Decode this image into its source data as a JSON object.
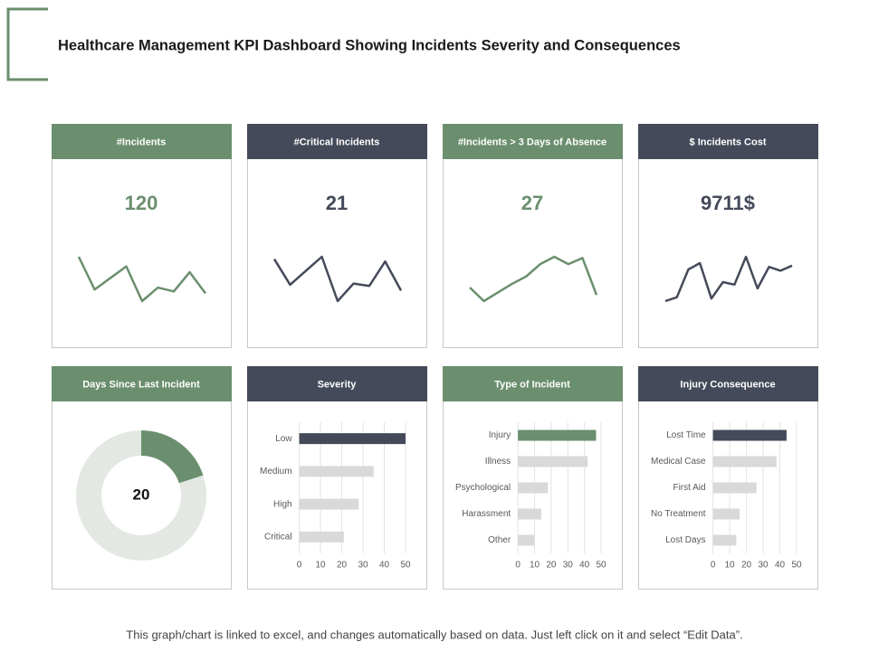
{
  "title": "Healthcare Management KPI Dashboard Showing Incidents Severity and Consequences",
  "footer": "This graph/chart is linked to excel, and changes automatically based on data. Just left click on it and select “Edit Data”.",
  "chart_data": [
    {
      "type": "line",
      "title": "#Incidents",
      "kpi": 120,
      "color": "#6b8f6e",
      "values": [
        33,
        16,
        22,
        28,
        10,
        17,
        15,
        25,
        14
      ]
    },
    {
      "type": "line",
      "title": "#Critical Incidents",
      "kpi": 21,
      "color": "#454a5a",
      "values": [
        53,
        31,
        43,
        55,
        17,
        32,
        30,
        51,
        26
      ]
    },
    {
      "type": "line",
      "title": "#Incidents > 3 Days of Absence",
      "kpi": 27,
      "color": "#6b8f6e",
      "values": [
        27,
        16,
        23,
        30,
        36,
        46,
        52,
        46,
        51,
        21
      ]
    },
    {
      "type": "line",
      "title": "$ Incidents Cost",
      "kpi": {
        "value": 9711,
        "label": "9711$"
      },
      "color": "#454a5a",
      "values": [
        16,
        19,
        41,
        46,
        18,
        31,
        29,
        51,
        26,
        43,
        40,
        44
      ]
    },
    {
      "type": "pie",
      "title": "Days Since Last Incident",
      "color": "#6b8f6e",
      "values": [
        20,
        80
      ],
      "colors": [
        "#6b8f6e",
        "#e3e8e3"
      ]
    },
    {
      "type": "bar",
      "title": "Severity",
      "color": "#454a5a",
      "categories": [
        "Low",
        "Medium",
        "High",
        "Critical"
      ],
      "values": [
        50,
        35,
        28,
        21
      ],
      "colors": [
        "#454a5a",
        "#d9d9d9",
        "#d9d9d9",
        "#d9d9d9"
      ],
      "xlim": [
        0,
        50
      ],
      "xticks": [
        0,
        10,
        20,
        30,
        40,
        50
      ],
      "grid": true
    },
    {
      "type": "bar",
      "title": "Type of Incident",
      "color": "#6b8f6e",
      "categories": [
        "Injury",
        "Illness",
        "Psychological",
        "Harassment",
        "Other"
      ],
      "values": [
        47,
        42,
        18,
        14,
        10
      ],
      "colors": [
        "#6b8f6e",
        "#d9d9d9",
        "#d9d9d9",
        "#d9d9d9",
        "#d9d9d9"
      ],
      "xlim": [
        0,
        50
      ],
      "xticks": [
        0,
        10,
        20,
        30,
        40,
        50
      ],
      "grid": true
    },
    {
      "type": "bar",
      "title": "Injury Consequence",
      "color": "#454a5a",
      "categories": [
        "Lost Time",
        "Medical Case",
        "First Aid",
        "No Treatment",
        "Lost Days"
      ],
      "values": [
        44,
        38,
        26,
        16,
        14
      ],
      "colors": [
        "#454a5a",
        "#d9d9d9",
        "#d9d9d9",
        "#d9d9d9",
        "#d9d9d9"
      ],
      "xlim": [
        0,
        50
      ],
      "xticks": [
        0,
        10,
        20,
        30,
        40,
        50
      ],
      "grid": true
    }
  ]
}
